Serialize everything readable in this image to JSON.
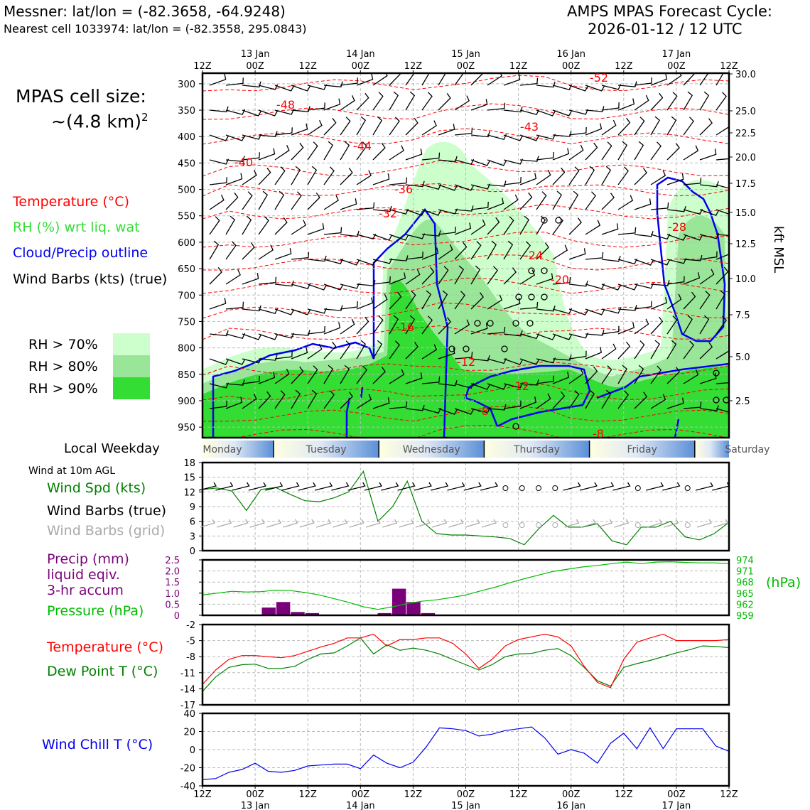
{
  "header": {
    "title_left": "Messner: lat/lon = (-82.3658, -64.9248)",
    "subtitle_left": "Nearest cell 1033974: lat/lon = (-82.3558, 295.0843)",
    "title_right_1": "AMPS MPAS Forecast Cycle:",
    "title_right_2": "2026-01-12 / 12 UTC"
  },
  "time_axis": {
    "hour_labels": [
      "12Z",
      "00Z",
      "12Z",
      "00Z",
      "12Z",
      "00Z",
      "12Z",
      "00Z",
      "12Z",
      "00Z",
      "12Z"
    ],
    "date_labels": [
      "13 Jan",
      "14 Jan",
      "15 Jan",
      "16 Jan",
      "17 Jan"
    ]
  },
  "left_panel": {
    "cell_size_label": "MPAS cell size:",
    "cell_size_value": "~(4.8 km)",
    "cell_size_exp": "2",
    "legend_temperature": "Temperature (°C)",
    "legend_rh": "RH (%) wrt liq. wat",
    "legend_cloud": "Cloud/Precip outline",
    "legend_barbs": "Wind Barbs (kts) (true)",
    "rh_levels": [
      "RH > 70%",
      "RH > 80%",
      "RH > 90%"
    ]
  },
  "colors": {
    "temperature": "#ff0000",
    "rh_label": "#33dd33",
    "rh70": "#ccffcc",
    "rh80": "#99e699",
    "rh90": "#33dd33",
    "cloud": "#0000ee",
    "wind_spd": "#008000",
    "dewpoint": "#008000",
    "pressure": "#00bb00",
    "precip": "#7a007a",
    "windchill": "#0000ee",
    "grid_barbs": "#aaaaaa"
  },
  "weekday": {
    "label": "Local Weekday",
    "days": [
      "Monday",
      "Tuesday",
      "Wednesday",
      "Thursday",
      "Friday",
      "Saturday"
    ]
  },
  "chart_data": [
    {
      "type": "time-height cross section",
      "name": "profile",
      "y_left_label": "",
      "y_right_label": "kft MSL",
      "pressure_ticks_hpa": [
        300,
        350,
        400,
        450,
        500,
        550,
        600,
        650,
        700,
        750,
        800,
        850,
        900,
        950
      ],
      "height_ticks_kft": [
        "30.0",
        "25.0",
        "22.5",
        "20.0",
        "17.5",
        "15.0",
        "12.5",
        "10.0",
        "7.5",
        "5.0",
        "2.5"
      ],
      "ylim_hpa": [
        970,
        280
      ],
      "temperature_contour_labels": [
        "-52",
        "-48",
        "-44",
        "-43",
        "-40",
        "-36",
        "-32",
        "-28",
        "-24",
        "-20",
        "-16",
        "-12",
        "-12",
        "-8",
        "-8"
      ]
    },
    {
      "type": "line",
      "name": "wind10m",
      "title": "Wind at 10m AGL",
      "series_label": "Wind Spd (kts)",
      "barbs_true_label": "Wind Barbs (true)",
      "barbs_grid_label": "Wind Barbs (grid)",
      "yticks": [
        "18",
        "15",
        "12",
        "9",
        "6",
        "3",
        "0"
      ],
      "ylim": [
        0,
        18
      ],
      "values": [
        12.5,
        12.8,
        12.2,
        8.2,
        12.5,
        12.9,
        11.5,
        10.2,
        10.0,
        10.8,
        12.0,
        16.2,
        6.0,
        9.0,
        14.2,
        6.0,
        3.5,
        3.2,
        3.2,
        3.0,
        2.8,
        2.5,
        1.2,
        4.5,
        7.2,
        4.8,
        4.8,
        5.5,
        2.0,
        1.2,
        4.8,
        4.8,
        6.0,
        2.8,
        2.2,
        3.5,
        5.8
      ]
    },
    {
      "type": "bar+line",
      "name": "precip_pressure",
      "precip_label_1": "Precip (mm)",
      "precip_label_2": "liquid eqiv.",
      "precip_label_3": "3-hr accum",
      "pressure_label": "Pressure (hPa)",
      "unit_label": "(hPa)",
      "left_ticks": [
        "2.5",
        "2.0",
        "1.5",
        "1.0",
        "0.5",
        "0"
      ],
      "right_ticks": [
        "974",
        "971",
        "968",
        "965",
        "962",
        "959"
      ],
      "precip_ylim": [
        0,
        2.5
      ],
      "pressure_ylim": [
        959,
        974
      ],
      "precip_bars": [
        [
          4,
          0.35
        ],
        [
          5,
          0.6
        ],
        [
          6,
          0.15
        ],
        [
          7,
          0.1
        ],
        [
          12,
          0.1
        ],
        [
          13,
          1.2
        ],
        [
          14,
          0.6
        ],
        [
          15,
          0.1
        ]
      ],
      "pressure": [
        964.5,
        965.0,
        965.5,
        965.3,
        965.4,
        965.8,
        965.7,
        965.2,
        964.5,
        963.5,
        962.5,
        961.3,
        960.6,
        961.3,
        962.2,
        962.8,
        963.2,
        963.8,
        964.5,
        965.6,
        966.6,
        967.8,
        968.9,
        969.9,
        970.9,
        971.5,
        972.1,
        972.5,
        973.0,
        973.4,
        973.0,
        973.4,
        973.5,
        973.3,
        973.2,
        973.2,
        973.0
      ]
    },
    {
      "type": "line",
      "name": "temp_dewpoint",
      "temp_label": "Temperature (°C)",
      "dew_label": "Dew Point T (°C)",
      "yticks": [
        "-2",
        "-5",
        "-8",
        "-11",
        "-14",
        "-17"
      ],
      "ylim": [
        -17,
        -2
      ],
      "temperature": [
        -13.2,
        -10.5,
        -8.5,
        -7.8,
        -7.8,
        -8.0,
        -8.2,
        -7.8,
        -7.0,
        -6.2,
        -5.5,
        -4.5,
        -4.5,
        -3.8,
        -6.0,
        -4.8,
        -4.8,
        -4.5,
        -4.5,
        -5.5,
        -7.5,
        -10.2,
        -8.5,
        -6.0,
        -4.8,
        -4.3,
        -3.8,
        -4.3,
        -6.0,
        -9.8,
        -12.8,
        -13.8,
        -8.5,
        -5.3,
        -4.5,
        -3.8,
        -5.0,
        -5.0,
        -5.0,
        -5.0,
        -4.8
      ],
      "dewpoint": [
        -14.5,
        -11.8,
        -10.0,
        -9.5,
        -9.4,
        -10.2,
        -10.2,
        -9.8,
        -8.5,
        -7.5,
        -7.3,
        -6.0,
        -4.5,
        -7.5,
        -5.8,
        -6.8,
        -6.4,
        -6.8,
        -7.5,
        -8.5,
        -9.5,
        -10.5,
        -9.5,
        -8.0,
        -7.5,
        -7.4,
        -6.8,
        -6.5,
        -7.8,
        -10.0,
        -12.5,
        -13.5,
        -10.0,
        -9.3,
        -8.7,
        -8.0,
        -7.3,
        -6.7,
        -6.0,
        -6.1,
        -6.3
      ]
    },
    {
      "type": "line",
      "name": "windchill",
      "label": "Wind Chill T (°C)",
      "yticks": [
        "40",
        "20",
        "0",
        "-20",
        "-40"
      ],
      "ylim": [
        -40,
        40
      ],
      "values": [
        -33,
        -32,
        -25,
        -22,
        -15,
        -24,
        -25,
        -23,
        -18,
        -17,
        -16,
        -16,
        -21,
        -6,
        -15,
        -20,
        -14,
        3,
        24,
        23,
        21,
        15,
        17,
        21,
        23,
        25,
        13,
        -5,
        0,
        -4,
        -15,
        7,
        18,
        1,
        24,
        1,
        23,
        23,
        23,
        4,
        -2
      ]
    }
  ]
}
